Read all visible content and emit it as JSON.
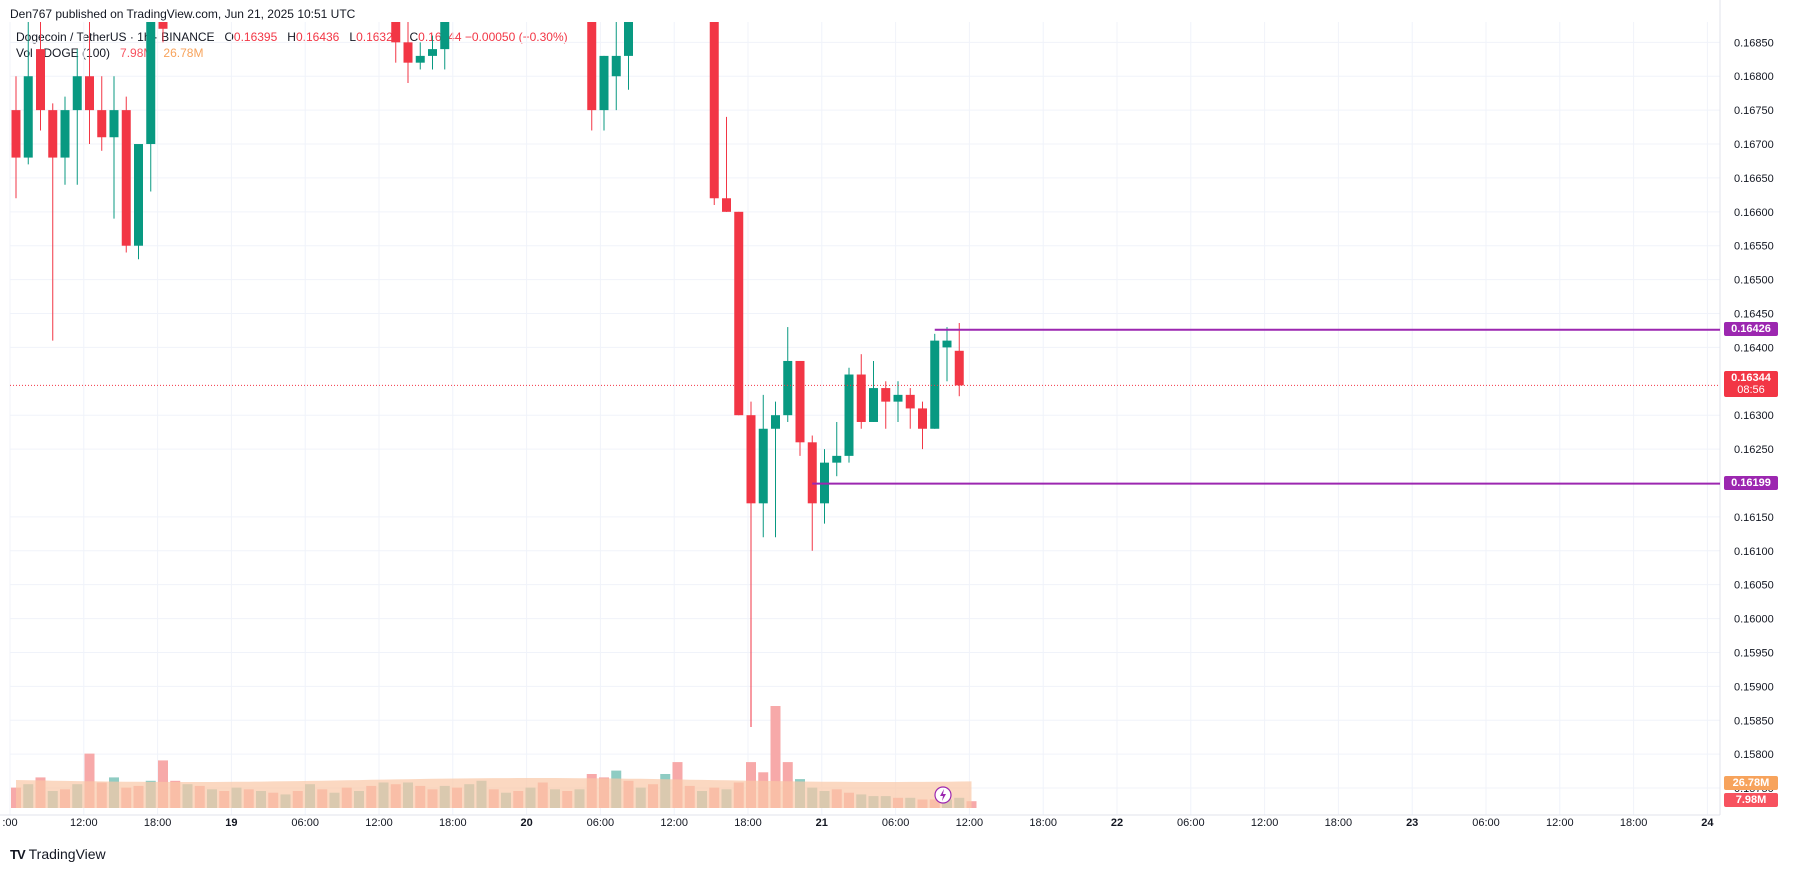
{
  "header": {
    "published_by": "Den767 published on TradingView.com, Jun 21, 2025 10:51 UTC",
    "symbol": "Dogecoin / TetherUS · 1h · BINANCE",
    "o_label": "O",
    "o_value": "0.16395",
    "h_label": "H",
    "h_value": "0.16436",
    "l_label": "L",
    "l_value": "0.16328",
    "c_label": "C",
    "c_value": "0.16344",
    "change": "−0.00050 (−0.30%)",
    "vol_label": "Vol · DOGE (100)",
    "vol_value": "7.98M",
    "vol_ma_value": "26.78M"
  },
  "brand": {
    "name": "TradingView",
    "logo": "TV"
  },
  "colors": {
    "up": "#089981",
    "down": "#f23645",
    "up_vol": "#8fccc3",
    "down_vol": "#f7a9a9",
    "vol_ma_fill": "#f9c8a6",
    "level": "#9c27b0",
    "grid": "#f0f3fa",
    "price_line": "#f23645"
  },
  "price_tags": {
    "upper_level": "0.16426",
    "current": "0.16344",
    "countdown": "08:56",
    "lower_level": "0.16199",
    "vol_ma": "26.78M",
    "vol": "7.98M"
  },
  "chart_data": {
    "type": "candlestick",
    "y_axis": {
      "ticks": [
        "0.16850",
        "0.16800",
        "0.16750",
        "0.16700",
        "0.16650",
        "0.16600",
        "0.16550",
        "0.16500",
        "0.16450",
        "0.16400",
        "0.16300",
        "0.16250",
        "0.16150",
        "0.16100",
        "0.16050",
        "0.16000",
        "0.15950",
        "0.15900",
        "0.15850",
        "0.15800",
        "0.15750"
      ],
      "range": [
        0.15725,
        0.1688
      ]
    },
    "x_axis": {
      "labels": [
        ":00",
        "12:00",
        "18:00",
        "19",
        "06:00",
        "12:00",
        "18:00",
        "20",
        "06:00",
        "12:00",
        "18:00",
        "21",
        "06:00",
        "12:00",
        "18:00",
        "22",
        "06:00",
        "12:00",
        "18:00",
        "23",
        "06:00",
        "12:00",
        "18:00",
        "24"
      ],
      "start_hour": 9,
      "hour_width_units": 1
    },
    "levels": [
      {
        "value": 0.16426,
        "from_hour": 75
      },
      {
        "value": 0.16199,
        "from_hour": 65
      }
    ],
    "current_price": 0.16344,
    "candles": [
      [
        0.1675,
        0.168,
        0.1662,
        0.1668
      ],
      [
        0.1668,
        0.1689,
        0.1667,
        0.168
      ],
      [
        0.1684,
        0.1689,
        0.1672,
        0.1675
      ],
      [
        0.1675,
        0.1676,
        0.1641,
        0.1668
      ],
      [
        0.1668,
        0.1677,
        0.1664,
        0.1675
      ],
      [
        0.1675,
        0.1684,
        0.1664,
        0.168
      ],
      [
        0.168,
        0.1688,
        0.167,
        0.1675
      ],
      [
        0.1675,
        0.168,
        0.1669,
        0.1671
      ],
      [
        0.1671,
        0.168,
        0.1659,
        0.1675
      ],
      [
        0.1675,
        0.1677,
        0.1654,
        0.1655
      ],
      [
        0.1655,
        0.1665,
        0.1653,
        0.167
      ],
      [
        0.167,
        0.169,
        0.1663,
        0.169
      ],
      [
        0.1688,
        0.169,
        0.1685,
        0.1687
      ],
      null,
      null,
      null,
      null,
      null,
      null,
      null,
      null,
      null,
      null,
      null,
      null,
      null,
      null,
      null,
      null,
      null,
      null,
      [
        0.169,
        0.169,
        0.1682,
        0.1685
      ],
      [
        0.1685,
        0.1689,
        0.1679,
        0.1682
      ],
      [
        0.1682,
        0.1685,
        0.1681,
        0.1683
      ],
      [
        0.1683,
        0.1686,
        0.1681,
        0.1684
      ],
      [
        0.1684,
        0.169,
        0.1681,
        0.169
      ],
      null,
      null,
      null,
      null,
      null,
      null,
      null,
      null,
      null,
      null,
      null,
      [
        0.169,
        0.169,
        0.1672,
        0.1675
      ],
      [
        0.1675,
        0.1683,
        0.1672,
        0.1683
      ],
      [
        0.168,
        0.169,
        0.1675,
        0.1683
      ],
      [
        0.1683,
        0.169,
        0.1678,
        0.169
      ],
      null,
      null,
      null,
      null,
      null,
      null,
      [
        0.169,
        0.169,
        0.1661,
        0.1662
      ],
      [
        0.1662,
        0.1674,
        0.166,
        0.166
      ],
      [
        0.166,
        0.166,
        0.163,
        0.163
      ],
      [
        0.163,
        0.1632,
        0.1584,
        0.1617
      ],
      [
        0.1617,
        0.1633,
        0.1612,
        0.1628
      ],
      [
        0.1628,
        0.1632,
        0.1612,
        0.163
      ],
      [
        0.163,
        0.1643,
        0.1629,
        0.1638
      ],
      [
        0.1638,
        0.1638,
        0.1624,
        0.1626
      ],
      [
        0.1626,
        0.1627,
        0.161,
        0.1617
      ],
      [
        0.1617,
        0.1625,
        0.1614,
        0.1623
      ],
      [
        0.1623,
        0.1629,
        0.1621,
        0.1624
      ],
      [
        0.1624,
        0.1637,
        0.1623,
        0.1636
      ],
      [
        0.1636,
        0.1639,
        0.1628,
        0.1629
      ],
      [
        0.1629,
        0.1638,
        0.1629,
        0.1634
      ],
      [
        0.1634,
        0.1635,
        0.1628,
        0.1632
      ],
      [
        0.1632,
        0.1635,
        0.1629,
        0.1633
      ],
      [
        0.1633,
        0.1634,
        0.1628,
        0.1631
      ],
      [
        0.1631,
        0.1632,
        0.1625,
        0.1628
      ],
      [
        0.1628,
        0.1642,
        0.1628,
        0.1641
      ],
      [
        0.164,
        0.1643,
        0.1635,
        0.1641
      ],
      [
        0.16395,
        0.16436,
        0.16328,
        0.16344
      ]
    ],
    "volumes": [
      [
        1.2,
        0
      ],
      [
        1.4,
        1
      ],
      [
        1.8,
        0
      ],
      [
        1.0,
        1
      ],
      [
        1.1,
        0
      ],
      [
        1.4,
        1
      ],
      [
        3.2,
        0
      ],
      [
        1.5,
        0
      ],
      [
        1.8,
        1
      ],
      [
        1.2,
        0
      ],
      [
        1.3,
        0
      ],
      [
        1.6,
        1
      ],
      [
        2.8,
        0
      ],
      [
        1.6,
        0
      ],
      [
        1.4,
        1
      ],
      [
        1.3,
        0
      ],
      [
        1.1,
        1
      ],
      [
        1.0,
        0
      ],
      [
        1.2,
        1
      ],
      [
        1.1,
        0
      ],
      [
        1.0,
        1
      ],
      [
        0.9,
        0
      ],
      [
        0.8,
        1
      ],
      [
        1.0,
        0
      ],
      [
        1.4,
        1
      ],
      [
        1.1,
        0
      ],
      [
        0.9,
        1
      ],
      [
        1.2,
        0
      ],
      [
        1.0,
        1
      ],
      [
        1.3,
        0
      ],
      [
        1.5,
        1
      ],
      [
        1.4,
        0
      ],
      [
        1.5,
        1
      ],
      [
        1.3,
        0
      ],
      [
        1.1,
        0
      ],
      [
        1.3,
        1
      ],
      [
        1.2,
        0
      ],
      [
        1.4,
        1
      ],
      [
        1.6,
        1
      ],
      [
        1.1,
        0
      ],
      [
        0.9,
        1
      ],
      [
        1.0,
        0
      ],
      [
        1.2,
        1
      ],
      [
        1.5,
        0
      ],
      [
        1.1,
        1
      ],
      [
        1.0,
        0
      ],
      [
        1.1,
        1
      ],
      [
        2.0,
        0
      ],
      [
        1.8,
        0
      ],
      [
        2.2,
        1
      ],
      [
        1.6,
        0
      ],
      [
        1.2,
        1
      ],
      [
        1.4,
        0
      ],
      [
        2.0,
        1
      ],
      [
        2.7,
        0
      ],
      [
        1.3,
        0
      ],
      [
        1.0,
        1
      ],
      [
        1.2,
        0
      ],
      [
        1.1,
        1
      ],
      [
        1.5,
        0
      ],
      [
        2.7,
        0
      ],
      [
        2.1,
        0
      ],
      [
        6.0,
        0
      ],
      [
        2.7,
        0
      ],
      [
        1.7,
        1
      ],
      [
        1.2,
        1
      ],
      [
        1.0,
        1
      ],
      [
        1.1,
        0
      ],
      [
        0.9,
        0
      ],
      [
        0.8,
        1
      ],
      [
        0.7,
        1
      ],
      [
        0.7,
        1
      ],
      [
        0.6,
        0
      ],
      [
        0.6,
        1
      ],
      [
        0.5,
        0
      ],
      [
        0.5,
        0
      ],
      [
        0.5,
        1
      ],
      [
        0.6,
        1
      ],
      [
        0.4,
        0
      ]
    ]
  }
}
